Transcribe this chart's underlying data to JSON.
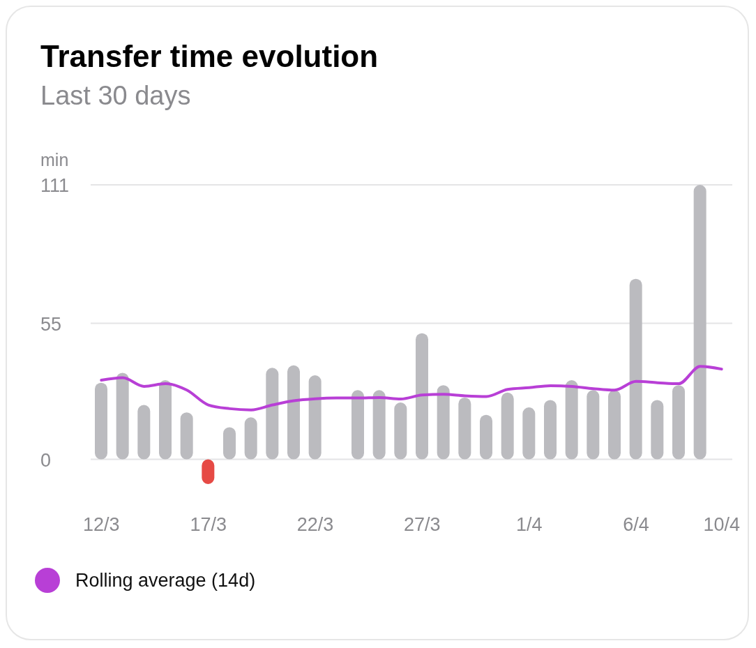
{
  "chart_data": {
    "type": "bar",
    "title": "Transfer time evolution",
    "subtitle": "Last 30 days",
    "ylabel": "min",
    "categories": [
      "12/3",
      null,
      null,
      null,
      null,
      "17/3",
      null,
      null,
      null,
      null,
      "22/3",
      null,
      null,
      null,
      null,
      "27/3",
      null,
      null,
      null,
      null,
      "1/4",
      null,
      null,
      null,
      null,
      "6/4",
      null,
      null,
      null,
      "10/4"
    ],
    "series": [
      {
        "colors": [
          "#bbbbbf",
          "#bbbbbf",
          "#bbbbbf",
          "#bbbbbf",
          "#bbbbbf",
          "#e64a45",
          "#bbbbbf",
          "#bbbbbf",
          "#bbbbbf",
          "#bbbbbf",
          "#bbbbbf",
          "#bbbbbf",
          "#bbbbbf",
          "#bbbbbf",
          "#bbbbbf",
          "#bbbbbf",
          "#bbbbbf",
          "#bbbbbf",
          "#bbbbbf",
          "#bbbbbf",
          "#bbbbbf",
          "#bbbbbf",
          "#bbbbbf",
          "#bbbbbf",
          "#bbbbbf",
          "#bbbbbf",
          "#bbbbbf",
          "#bbbbbf",
          "#bbbbbf",
          "#bbbbbf"
        ],
        "values": [
          31,
          35,
          22,
          32,
          19,
          -10,
          13,
          17,
          37,
          38,
          34,
          null,
          28,
          28,
          23,
          51,
          30,
          25,
          18,
          27,
          21,
          24,
          32,
          28,
          28,
          73,
          24,
          30,
          111,
          null
        ]
      },
      {
        "type": "line",
        "name": "Rolling average (14d)",
        "color": "#b83fd6",
        "values": [
          32,
          33,
          29.5,
          30.6,
          28,
          22,
          20.5,
          20,
          22,
          23.7,
          24.5,
          24.8,
          24.8,
          25,
          24.4,
          26,
          26.3,
          25.7,
          25.4,
          28.3,
          29,
          29.8,
          29.5,
          28.6,
          28,
          31.5,
          31,
          30.6,
          37.6,
          36.5
        ]
      }
    ],
    "ylim": [
      -10,
      111
    ],
    "yticks": [
      0,
      55,
      111
    ],
    "grid": "y",
    "legend": "bottom left",
    "marker": "none",
    "line_style": "solid"
  }
}
